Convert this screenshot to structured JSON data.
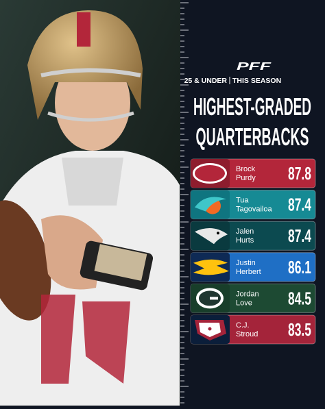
{
  "header": {
    "logo": "PFF",
    "subtitle_left": "25 & UNDER",
    "subtitle_right": "THIS SEASON",
    "title_line1": "HIGHEST-GRADED",
    "title_line2": "QUARTERBACKS"
  },
  "rows": [
    {
      "first": "Brock",
      "last": "Purdy",
      "grade": "87.8"
    },
    {
      "first": "Tua",
      "last": "Tagovailoa",
      "grade": "87.4"
    },
    {
      "first": "Jalen",
      "last": "Hurts",
      "grade": "87.4"
    },
    {
      "first": "Justin",
      "last": "Herbert",
      "grade": "86.1"
    },
    {
      "first": "Jordan",
      "last": "Love",
      "grade": "84.5"
    },
    {
      "first": "C.J.",
      "last": "Stroud",
      "grade": "83.5"
    }
  ]
}
